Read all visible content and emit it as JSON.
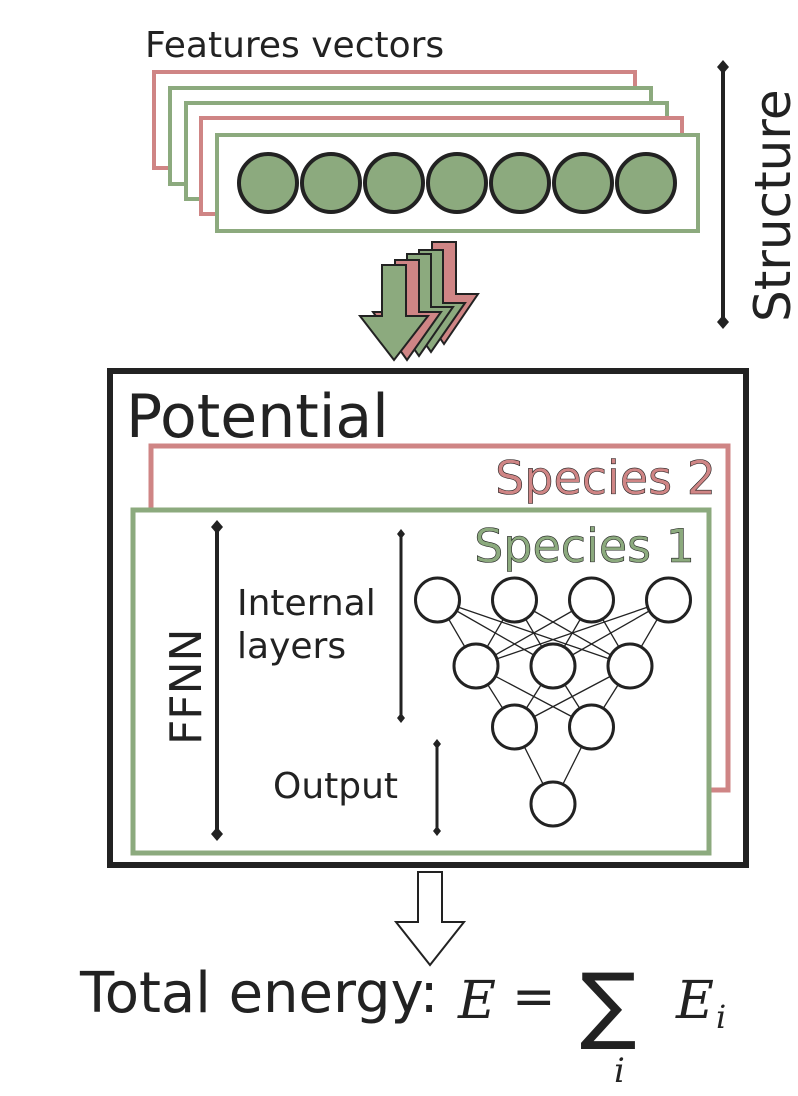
{
  "labels": {
    "features": "Features vectors",
    "structure": "Structure",
    "potential": "Potential",
    "species2": "Species 2",
    "species1": "Species 1",
    "internal_line1": "Internal",
    "internal_line2": "layers",
    "output": "Output",
    "ffnn": "FFNN",
    "total_energy": "Total energy:"
  },
  "equation": {
    "lhs": "E",
    "equals": "=",
    "sum": "∑",
    "term": "E",
    "term_sub": "i",
    "index": "i"
  },
  "colors": {
    "green": "#8caa7e",
    "red": "#cf8585",
    "dark": "#222222",
    "node_fill": "#8caa7e"
  },
  "network": {
    "layer_sizes": [
      4,
      3,
      2,
      1
    ]
  },
  "feature_vector": {
    "node_count": 7
  }
}
